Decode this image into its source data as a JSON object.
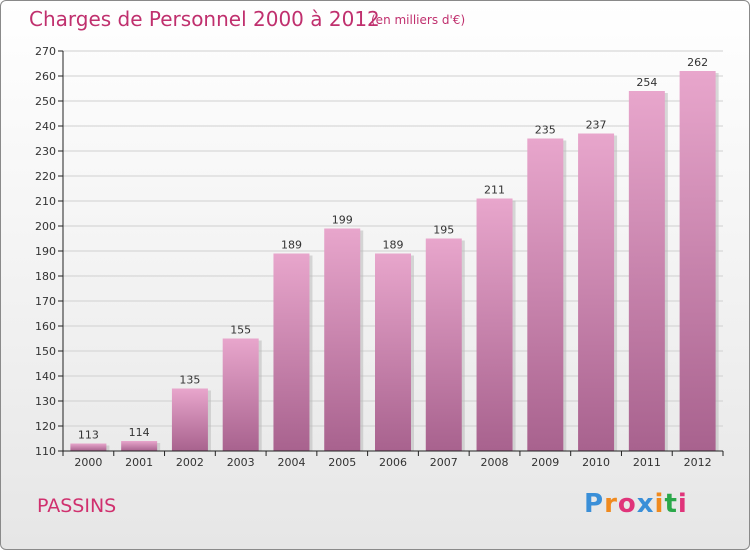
{
  "header": {
    "title": "Charges de Personnel 2000 à 2012",
    "subtitle": "(en milliers d'€)"
  },
  "footer": {
    "commune": "PASSINS",
    "logo_text": "Proxiti",
    "logo_colors": [
      "#3a8fd8",
      "#f08a1e",
      "#e0347a",
      "#3a8fd8",
      "#f08a1e",
      "#2aa84a",
      "#e0347a"
    ]
  },
  "colors": {
    "title": "#c0306e",
    "bar_top": "#e8a6cc",
    "bar_bottom": "#a8628e",
    "grid": "#d0d0d0",
    "axis": "#222222"
  },
  "chart_data": {
    "type": "bar",
    "title": "Charges de Personnel 2000 à 2012",
    "subtitle": "(en milliers d'€)",
    "categories": [
      "2000",
      "2001",
      "2002",
      "2003",
      "2004",
      "2005",
      "2006",
      "2007",
      "2008",
      "2009",
      "2010",
      "2011",
      "2012"
    ],
    "values": [
      113,
      114,
      135,
      155,
      189,
      199,
      189,
      195,
      211,
      235,
      237,
      254,
      262
    ],
    "ylim": [
      110,
      270
    ],
    "ytick_step": 10,
    "yticks": [
      "110",
      "120",
      "130",
      "140",
      "150",
      "160",
      "170",
      "180",
      "190",
      "200",
      "210",
      "220",
      "230",
      "240",
      "250",
      "260",
      "270"
    ],
    "grid": true,
    "legend": "none"
  }
}
